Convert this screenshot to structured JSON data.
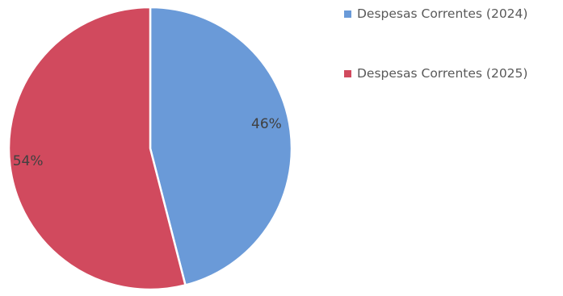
{
  "chart_data": {
    "type": "pie",
    "title": "",
    "categories": [
      "Despesas Correntes (2024)",
      "Despesas Correntes (2025)"
    ],
    "values": [
      46,
      54
    ],
    "value_labels": [
      "46%",
      "54%"
    ],
    "colors": [
      "#6a9ad8",
      "#d14a5e"
    ],
    "start_angle_deg": 0,
    "direction": "clockwise",
    "legend_position": "top-right"
  }
}
